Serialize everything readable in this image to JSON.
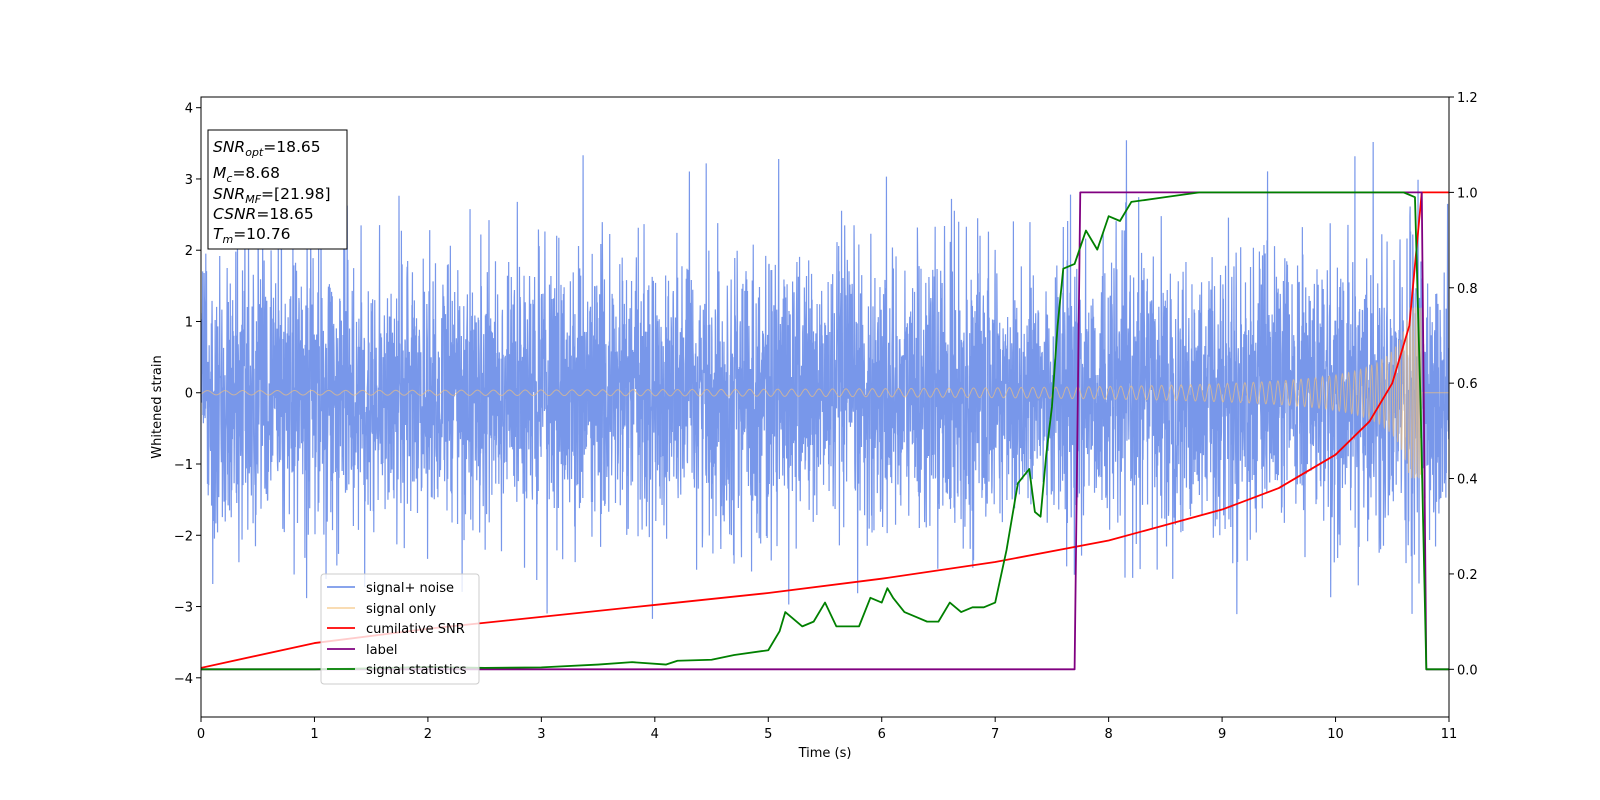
{
  "chart_data": {
    "type": "line",
    "title": "",
    "xlabel": "Time (s)",
    "ylabel": "Whitened strain",
    "xlim": [
      0,
      11
    ],
    "ylim": [
      -4.55,
      4.15
    ],
    "y2lim": [
      -0.1,
      1.2
    ],
    "x_ticks": [
      "0",
      "1",
      "2",
      "3",
      "4",
      "5",
      "6",
      "7",
      "8",
      "9",
      "10",
      "11"
    ],
    "y_ticks": [
      "4",
      "3",
      "2",
      "1",
      "0",
      "−1",
      "−2",
      "−3",
      "−4"
    ],
    "y2_ticks": [
      "1.2",
      "1.0",
      "0.8",
      "0.6",
      "0.4",
      "0.2",
      "0.0"
    ],
    "grid": false,
    "legend_position": "lower-left",
    "info_box": {
      "lines": [
        {
          "base": "SNR",
          "sub": "opt",
          "value": "=18.65"
        },
        {
          "base": "M",
          "sub": "c",
          "value": "=8.68"
        },
        {
          "base": "SNR",
          "sub": "MF",
          "value": "=[21.98]"
        },
        {
          "base": "CSNR",
          "sub": "",
          "value": "=18.65"
        },
        {
          "base": "T",
          "sub": "m",
          "value": "=10.76"
        }
      ]
    },
    "series": [
      {
        "name": "signal+ noise",
        "axis": "left",
        "color": "#6d8ee8",
        "kind": "noise",
        "std": 0.95,
        "max_abs_approx": 4.1
      },
      {
        "name": "signal only",
        "axis": "left",
        "color": "#f5c27a",
        "kind": "chirp",
        "merger_time": 10.76,
        "peak_amplitude": 1.2
      },
      {
        "name": "cumilative SNR",
        "axis": "right",
        "color": "#ff0000",
        "x": [
          0,
          1,
          2,
          3,
          4,
          5,
          6,
          7,
          8,
          9,
          9.5,
          10,
          10.3,
          10.5,
          10.65,
          10.76,
          11
        ],
        "y": [
          0.003,
          0.055,
          0.085,
          0.11,
          0.135,
          0.16,
          0.19,
          0.225,
          0.27,
          0.335,
          0.38,
          0.45,
          0.52,
          0.6,
          0.72,
          1.0,
          1.0
        ]
      },
      {
        "name": "label",
        "axis": "right",
        "color": "#800080",
        "x": [
          0,
          7.7,
          7.75,
          10.76,
          10.8,
          11
        ],
        "y": [
          0.0,
          0.0,
          1.0,
          1.0,
          0.0,
          0.0
        ]
      },
      {
        "name": "signal statistics",
        "axis": "right",
        "color": "#008000",
        "x": [
          0,
          0.5,
          1,
          1.5,
          2,
          2.5,
          3,
          3.5,
          3.8,
          4.1,
          4.2,
          4.5,
          4.7,
          5,
          5.1,
          5.15,
          5.3,
          5.4,
          5.5,
          5.6,
          5.8,
          5.9,
          6.0,
          6.05,
          6.1,
          6.2,
          6.3,
          6.4,
          6.5,
          6.6,
          6.7,
          6.8,
          6.9,
          7.0,
          7.1,
          7.2,
          7.3,
          7.35,
          7.4,
          7.45,
          7.5,
          7.55,
          7.6,
          7.7,
          7.8,
          7.9,
          8.0,
          8.1,
          8.2,
          8.5,
          8.8,
          9.0,
          10.0,
          10.6,
          10.7,
          10.75,
          10.8,
          10.85,
          11
        ],
        "y": [
          0.0,
          0.0,
          0.0,
          0.002,
          0.005,
          0.003,
          0.004,
          0.01,
          0.015,
          0.01,
          0.018,
          0.02,
          0.03,
          0.04,
          0.08,
          0.12,
          0.09,
          0.1,
          0.14,
          0.09,
          0.09,
          0.15,
          0.14,
          0.17,
          0.15,
          0.12,
          0.11,
          0.1,
          0.1,
          0.14,
          0.12,
          0.13,
          0.13,
          0.14,
          0.25,
          0.39,
          0.42,
          0.33,
          0.32,
          0.45,
          0.55,
          0.72,
          0.84,
          0.85,
          0.92,
          0.88,
          0.95,
          0.94,
          0.98,
          0.99,
          1.0,
          1.0,
          1.0,
          1.0,
          0.99,
          0.55,
          0.0,
          0.0,
          0.0
        ]
      }
    ]
  }
}
